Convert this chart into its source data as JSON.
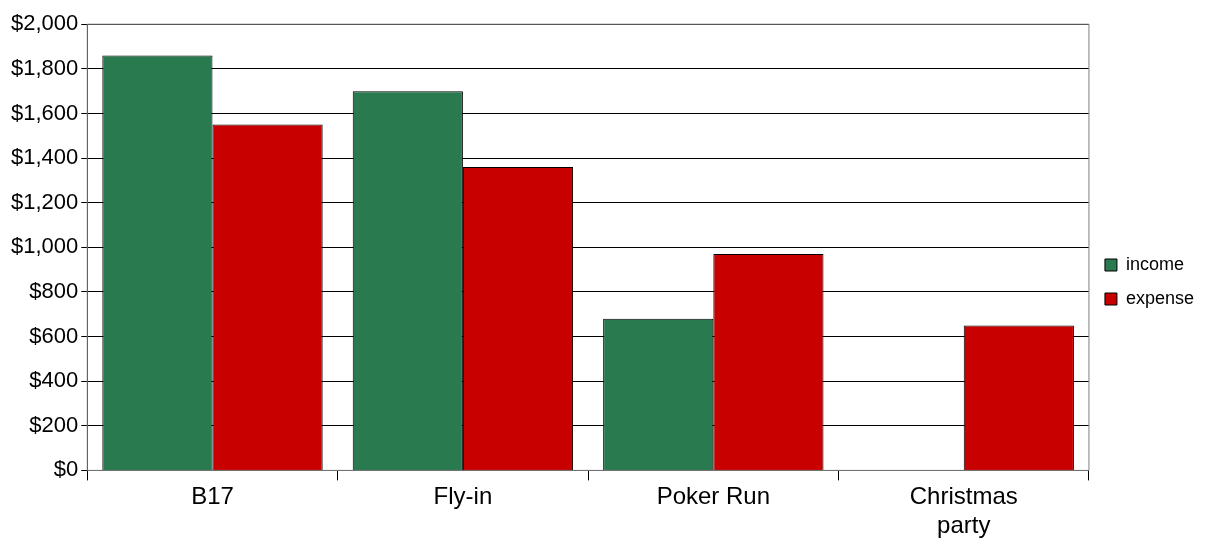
{
  "chart_data": {
    "type": "bar",
    "categories": [
      "B17",
      "Fly-in",
      "Poker Run",
      "Christmas party"
    ],
    "series": [
      {
        "name": "income",
        "color": "#2a7a50",
        "values": [
          1860,
          1700,
          680,
          0
        ]
      },
      {
        "name": "expense",
        "color": "#c80000",
        "values": [
          1550,
          1360,
          970,
          650
        ]
      }
    ],
    "ylim": [
      0,
      2000
    ],
    "yticks": [
      {
        "value": 0,
        "label": "$0"
      },
      {
        "value": 200,
        "label": "$200"
      },
      {
        "value": 400,
        "label": "$400"
      },
      {
        "value": 600,
        "label": "$600"
      },
      {
        "value": 800,
        "label": "$800"
      },
      {
        "value": 1000,
        "label": "$1,000"
      },
      {
        "value": 1200,
        "label": "$1,200"
      },
      {
        "value": 1400,
        "label": "$1,400"
      },
      {
        "value": 1600,
        "label": "$1,600"
      },
      {
        "value": 1800,
        "label": "$1,800"
      },
      {
        "value": 2000,
        "label": "$2,000"
      }
    ],
    "grid": "y",
    "legend": "right"
  }
}
